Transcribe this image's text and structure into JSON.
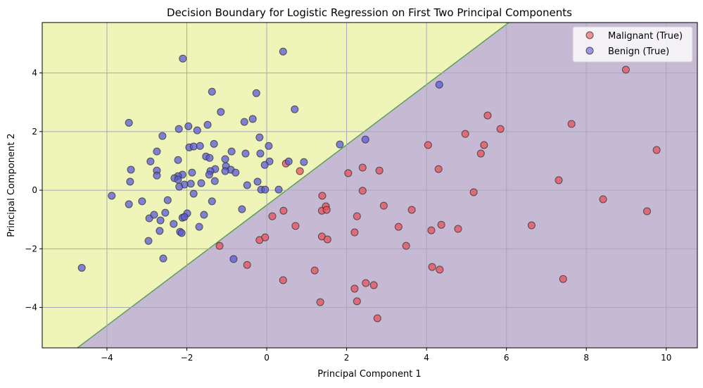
{
  "chart_data": {
    "type": "scatter",
    "title": "Decision Boundary for Logistic Regression on First Two Principal Components",
    "xlabel": "Principal Component 1",
    "ylabel": "Principal Component 2",
    "xlim": [
      -5.62,
      10.78
    ],
    "ylim": [
      -5.38,
      5.72
    ],
    "xticks": [
      -4,
      -2,
      0,
      2,
      4,
      6,
      8,
      10
    ],
    "yticks": [
      -4,
      -2,
      0,
      2,
      4
    ],
    "grid": true,
    "legend_position": "top-right",
    "regions": {
      "benign_color": "#eff5b9",
      "malignant_color": "#c6b9d4",
      "boundary_color": "#5aa05a"
    },
    "decision_boundary": [
      [
        -4.74,
        -5.38
      ],
      [
        6.06,
        5.72
      ]
    ],
    "series": [
      {
        "name": "Malignant (True)",
        "color": "#e8525a",
        "points": [
          [
            0.48,
            0.91
          ],
          [
            0.83,
            0.65
          ],
          [
            -1.18,
            -1.9
          ],
          [
            -0.18,
            -1.7
          ],
          [
            -0.04,
            -1.61
          ],
          [
            -0.49,
            -2.55
          ],
          [
            0.14,
            -0.89
          ],
          [
            0.42,
            -0.7
          ],
          [
            0.72,
            -1.22
          ],
          [
            0.41,
            -3.07
          ],
          [
            1.2,
            -2.74
          ],
          [
            1.34,
            -3.82
          ],
          [
            1.39,
            -0.19
          ],
          [
            1.38,
            -0.7
          ],
          [
            1.48,
            -0.55
          ],
          [
            1.5,
            -0.67
          ],
          [
            1.38,
            -1.58
          ],
          [
            1.52,
            -1.68
          ],
          [
            2.04,
            0.58
          ],
          [
            2.4,
            0.77
          ],
          [
            2.82,
            0.67
          ],
          [
            2.4,
            -0.02
          ],
          [
            2.26,
            -0.89
          ],
          [
            2.93,
            -0.53
          ],
          [
            2.2,
            -1.44
          ],
          [
            2.2,
            -3.36
          ],
          [
            2.48,
            -3.17
          ],
          [
            2.68,
            -3.24
          ],
          [
            2.26,
            -3.79
          ],
          [
            2.77,
            -4.37
          ],
          [
            3.3,
            -1.25
          ],
          [
            3.49,
            -1.9
          ],
          [
            3.63,
            -0.67
          ],
          [
            4.04,
            1.54
          ],
          [
            4.3,
            0.72
          ],
          [
            4.12,
            -1.37
          ],
          [
            4.37,
            -1.18
          ],
          [
            4.14,
            -2.62
          ],
          [
            4.33,
            -2.71
          ],
          [
            4.79,
            -1.32
          ],
          [
            4.97,
            1.92
          ],
          [
            5.53,
            2.55
          ],
          [
            5.44,
            1.54
          ],
          [
            5.36,
            1.25
          ],
          [
            5.18,
            -0.07
          ],
          [
            5.85,
            2.09
          ],
          [
            6.63,
            -1.2
          ],
          [
            7.63,
            2.26
          ],
          [
            7.31,
            0.34
          ],
          [
            7.42,
            -3.03
          ],
          [
            8.42,
            -0.31
          ],
          [
            8.99,
            4.11
          ],
          [
            9.52,
            -0.72
          ],
          [
            9.76,
            1.37
          ]
        ]
      },
      {
        "name": "Benign (True)",
        "color": "#5a5ad8",
        "points": [
          [
            0.41,
            4.73
          ],
          [
            -2.1,
            4.49
          ],
          [
            -1.37,
            3.36
          ],
          [
            -0.26,
            3.31
          ],
          [
            -1.15,
            2.67
          ],
          [
            0.7,
            2.76
          ],
          [
            -3.45,
            2.3
          ],
          [
            -0.56,
            2.33
          ],
          [
            -0.35,
            2.43
          ],
          [
            -2.2,
            2.09
          ],
          [
            -1.96,
            2.18
          ],
          [
            -1.74,
            2.04
          ],
          [
            -1.48,
            2.23
          ],
          [
            -2.61,
            1.85
          ],
          [
            -0.18,
            1.8
          ],
          [
            -1.94,
            1.46
          ],
          [
            -1.83,
            1.49
          ],
          [
            -1.67,
            1.51
          ],
          [
            -1.32,
            1.58
          ],
          [
            0.05,
            1.51
          ],
          [
            -2.75,
            1.32
          ],
          [
            -1.52,
            1.15
          ],
          [
            -1.43,
            1.1
          ],
          [
            -0.53,
            1.25
          ],
          [
            -0.88,
            1.32
          ],
          [
            -0.16,
            1.25
          ],
          [
            -1.04,
            1.06
          ],
          [
            -2.91,
            0.98
          ],
          [
            -2.22,
            1.03
          ],
          [
            0.07,
            0.98
          ],
          [
            0.55,
            0.98
          ],
          [
            0.93,
            0.96
          ],
          [
            -0.05,
            0.86
          ],
          [
            -3.4,
            0.7
          ],
          [
            -2.75,
            0.67
          ],
          [
            -1.02,
            0.82
          ],
          [
            -0.9,
            0.7
          ],
          [
            -1.04,
            0.65
          ],
          [
            -0.78,
            0.6
          ],
          [
            -1.29,
            0.72
          ],
          [
            -1.41,
            0.65
          ],
          [
            -1.44,
            0.53
          ],
          [
            -1.87,
            0.6
          ],
          [
            -2.11,
            0.53
          ],
          [
            -2.22,
            0.48
          ],
          [
            -2.31,
            0.41
          ],
          [
            -2.75,
            0.5
          ],
          [
            -3.42,
            0.29
          ],
          [
            -2.22,
            0.36
          ],
          [
            -2.06,
            0.19
          ],
          [
            -2.19,
            0.12
          ],
          [
            -1.9,
            0.22
          ],
          [
            -1.64,
            0.24
          ],
          [
            -1.3,
            0.31
          ],
          [
            -0.49,
            0.17
          ],
          [
            -0.23,
            0.29
          ],
          [
            -0.14,
            0.02
          ],
          [
            -0.04,
            0.02
          ],
          [
            0.3,
            0.02
          ],
          [
            -3.88,
            -0.19
          ],
          [
            -3.45,
            -0.48
          ],
          [
            -3.12,
            -0.38
          ],
          [
            -2.48,
            -0.34
          ],
          [
            -1.83,
            -0.12
          ],
          [
            -1.37,
            -0.38
          ],
          [
            -0.62,
            -0.65
          ],
          [
            -2.94,
            -0.96
          ],
          [
            -2.82,
            -0.84
          ],
          [
            -2.54,
            -0.77
          ],
          [
            -2.66,
            -1.03
          ],
          [
            -1.99,
            -0.79
          ],
          [
            -2.11,
            -0.94
          ],
          [
            -2.06,
            -0.91
          ],
          [
            -1.57,
            -0.84
          ],
          [
            -2.33,
            -1.15
          ],
          [
            -1.69,
            -1.25
          ],
          [
            -2.68,
            -1.39
          ],
          [
            -2.17,
            -1.42
          ],
          [
            -2.13,
            -1.46
          ],
          [
            -2.96,
            -1.73
          ],
          [
            -2.59,
            -2.33
          ],
          [
            -0.83,
            -2.35
          ],
          [
            -4.63,
            -2.65
          ],
          [
            4.32,
            3.6
          ],
          [
            2.47,
            1.73
          ],
          [
            1.83,
            1.56
          ]
        ]
      }
    ]
  }
}
